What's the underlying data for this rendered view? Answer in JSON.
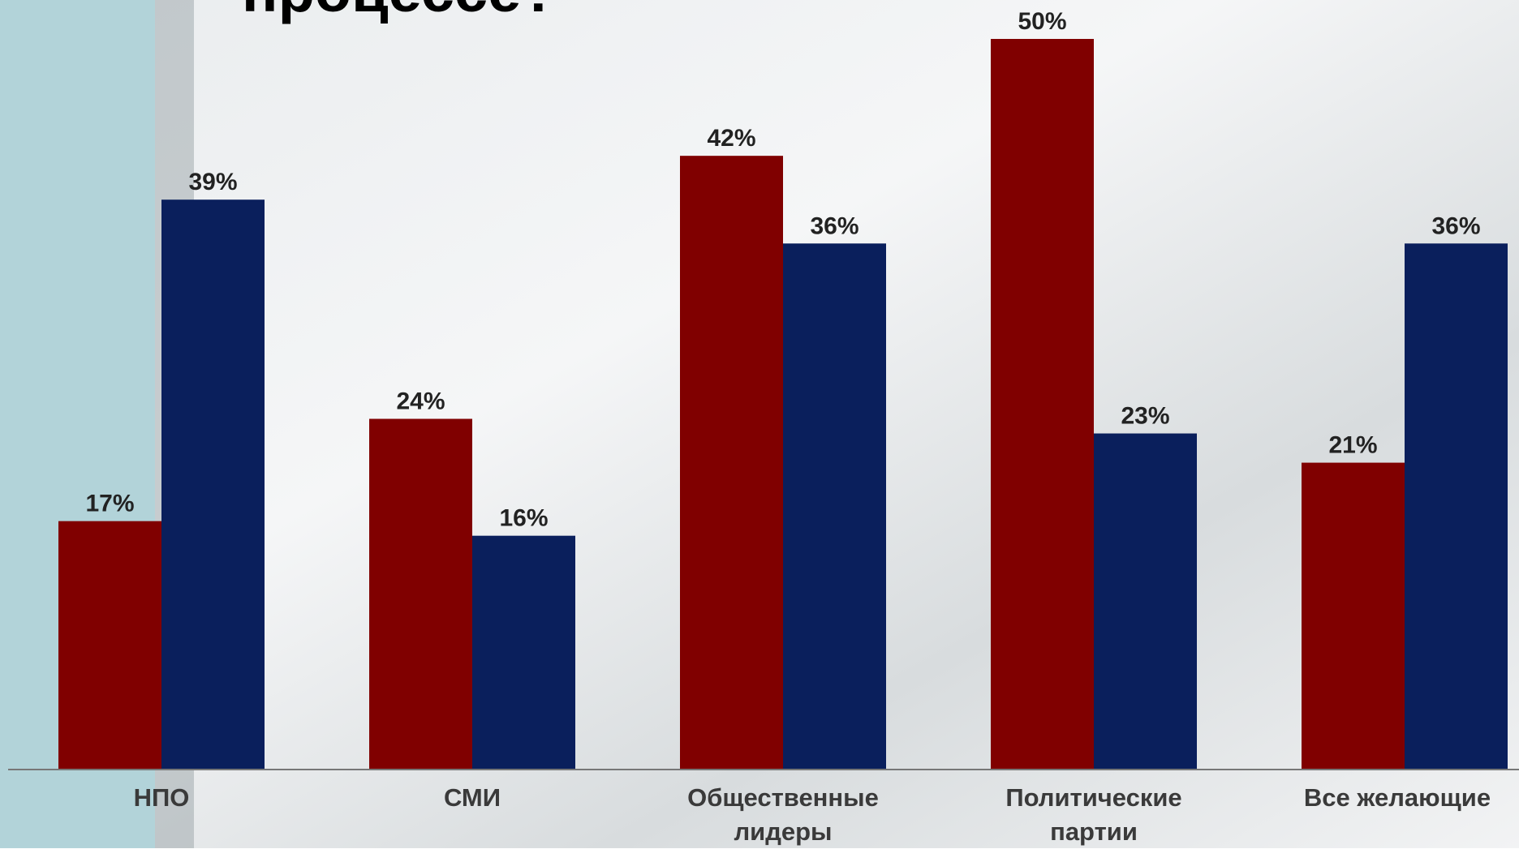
{
  "chart_data": {
    "type": "bar",
    "title": "процессе?",
    "categories": [
      "НПО",
      "СМИ",
      "Общественные лидеры",
      "Политические партии",
      "Все желающие"
    ],
    "series": [
      {
        "color": "#800000",
        "values": [
          17,
          24,
          42,
          50,
          21
        ],
        "value_labels": [
          "17%",
          "24%",
          "42%",
          "50%",
          "21%"
        ]
      },
      {
        "color": "#0a1f5c",
        "values": [
          39,
          16,
          36,
          23,
          36
        ],
        "value_labels": [
          "39%",
          "16%",
          "36%",
          "23%",
          "36%"
        ]
      }
    ],
    "ylim": [
      0,
      50
    ]
  }
}
